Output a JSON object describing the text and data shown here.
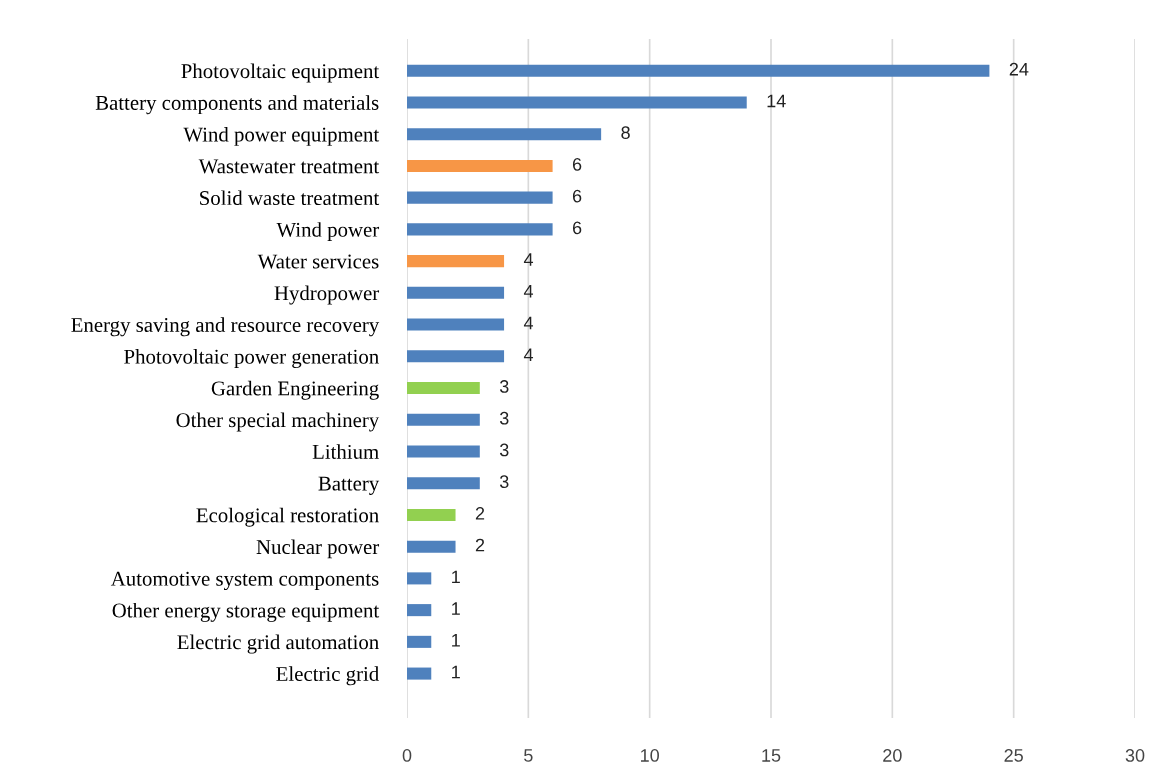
{
  "chart_data": {
    "type": "bar",
    "orientation": "horizontal",
    "categories": [
      "Photovoltaic equipment",
      "Battery components and materials",
      "Wind power equipment",
      "Wastewater treatment",
      "Solid waste treatment",
      "Wind power",
      "Water services",
      "Hydropower",
      "Energy saving and resource recovery",
      "Photovoltaic power generation",
      "Garden Engineering",
      "Other special machinery",
      "Lithium",
      "Battery",
      "Ecological restoration",
      "Nuclear power",
      "Automotive system components",
      "Other energy storage equipment",
      "Electric grid automation",
      "Electric grid"
    ],
    "values": [
      24,
      14,
      8,
      6,
      6,
      6,
      4,
      4,
      4,
      4,
      3,
      3,
      3,
      3,
      2,
      2,
      1,
      1,
      1,
      1
    ],
    "colors": [
      "#4f81bd",
      "#4f81bd",
      "#4f81bd",
      "#f79646",
      "#4f81bd",
      "#4f81bd",
      "#f79646",
      "#4f81bd",
      "#4f81bd",
      "#4f81bd",
      "#92d050",
      "#4f81bd",
      "#4f81bd",
      "#4f81bd",
      "#92d050",
      "#4f81bd",
      "#4f81bd",
      "#4f81bd",
      "#4f81bd",
      "#4f81bd"
    ],
    "xlim": [
      0,
      30
    ],
    "xticks": [
      0,
      5,
      10,
      15,
      20,
      25,
      30
    ],
    "grid": "x",
    "data_labels": true
  }
}
